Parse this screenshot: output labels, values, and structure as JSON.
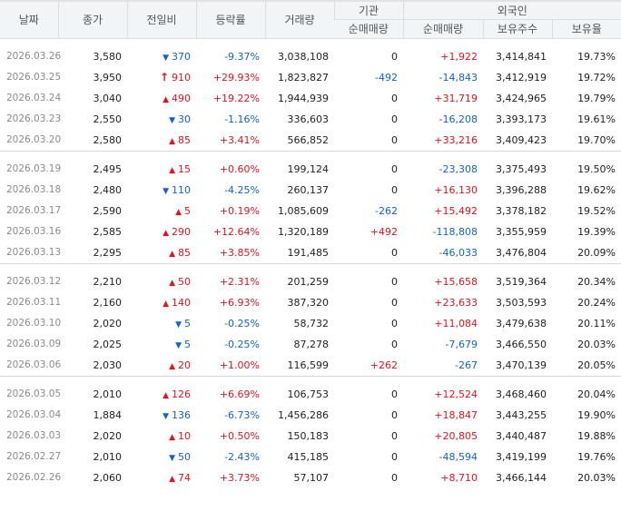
{
  "headers": {
    "date": "날짜",
    "close": "종가",
    "change": "전일비",
    "rate": "등락률",
    "volume": "거래량",
    "institution": "기관",
    "foreign": "외국인",
    "inst_net": "순매매량",
    "foreign_net": "순매매량",
    "foreign_shares": "보유주수",
    "foreign_ratio": "보유율"
  },
  "groups": [
    [
      {
        "date": "2026.03.26",
        "close": "3,580",
        "dir": "down",
        "mark": "▼",
        "change": "370",
        "rate": "-9.37%",
        "volume": "3,038,108",
        "inst": "0",
        "inst_dir": "plain",
        "foreign": "+1,922",
        "foreign_dir": "up",
        "shares": "3,414,841",
        "ratio": "19.73%"
      },
      {
        "date": "2026.03.25",
        "close": "3,950",
        "dir": "up",
        "mark": "↑",
        "change": "910",
        "rate": "+29.93%",
        "volume": "1,823,827",
        "inst": "-492",
        "inst_dir": "down",
        "foreign": "-14,843",
        "foreign_dir": "down",
        "shares": "3,412,919",
        "ratio": "19.72%"
      },
      {
        "date": "2026.03.24",
        "close": "3,040",
        "dir": "up",
        "mark": "▲",
        "change": "490",
        "rate": "+19.22%",
        "volume": "1,944,939",
        "inst": "0",
        "inst_dir": "plain",
        "foreign": "+31,719",
        "foreign_dir": "up",
        "shares": "3,424,965",
        "ratio": "19.79%"
      },
      {
        "date": "2026.03.23",
        "close": "2,550",
        "dir": "down",
        "mark": "▼",
        "change": "30",
        "rate": "-1.16%",
        "volume": "336,603",
        "inst": "0",
        "inst_dir": "plain",
        "foreign": "-16,208",
        "foreign_dir": "down",
        "shares": "3,393,173",
        "ratio": "19.61%"
      },
      {
        "date": "2026.03.20",
        "close": "2,580",
        "dir": "up",
        "mark": "▲",
        "change": "85",
        "rate": "+3.41%",
        "volume": "566,852",
        "inst": "0",
        "inst_dir": "plain",
        "foreign": "+33,216",
        "foreign_dir": "up",
        "shares": "3,409,423",
        "ratio": "19.70%"
      }
    ],
    [
      {
        "date": "2026.03.19",
        "close": "2,495",
        "dir": "up",
        "mark": "▲",
        "change": "15",
        "rate": "+0.60%",
        "volume": "199,124",
        "inst": "0",
        "inst_dir": "plain",
        "foreign": "-23,308",
        "foreign_dir": "down",
        "shares": "3,375,493",
        "ratio": "19.50%"
      },
      {
        "date": "2026.03.18",
        "close": "2,480",
        "dir": "down",
        "mark": "▼",
        "change": "110",
        "rate": "-4.25%",
        "volume": "260,137",
        "inst": "0",
        "inst_dir": "plain",
        "foreign": "+16,130",
        "foreign_dir": "up",
        "shares": "3,396,288",
        "ratio": "19.62%"
      },
      {
        "date": "2026.03.17",
        "close": "2,590",
        "dir": "up",
        "mark": "▲",
        "change": "5",
        "rate": "+0.19%",
        "volume": "1,085,609",
        "inst": "-262",
        "inst_dir": "down",
        "foreign": "+15,492",
        "foreign_dir": "up",
        "shares": "3,378,182",
        "ratio": "19.52%"
      },
      {
        "date": "2026.03.16",
        "close": "2,585",
        "dir": "up",
        "mark": "▲",
        "change": "290",
        "rate": "+12.64%",
        "volume": "1,320,189",
        "inst": "+492",
        "inst_dir": "up",
        "foreign": "-118,808",
        "foreign_dir": "down",
        "shares": "3,355,959",
        "ratio": "19.39%"
      },
      {
        "date": "2026.03.13",
        "close": "2,295",
        "dir": "up",
        "mark": "▲",
        "change": "85",
        "rate": "+3.85%",
        "volume": "191,485",
        "inst": "0",
        "inst_dir": "plain",
        "foreign": "-46,033",
        "foreign_dir": "down",
        "shares": "3,476,804",
        "ratio": "20.09%"
      }
    ],
    [
      {
        "date": "2026.03.12",
        "close": "2,210",
        "dir": "up",
        "mark": "▲",
        "change": "50",
        "rate": "+2.31%",
        "volume": "201,259",
        "inst": "0",
        "inst_dir": "plain",
        "foreign": "+15,658",
        "foreign_dir": "up",
        "shares": "3,519,364",
        "ratio": "20.34%"
      },
      {
        "date": "2026.03.11",
        "close": "2,160",
        "dir": "up",
        "mark": "▲",
        "change": "140",
        "rate": "+6.93%",
        "volume": "387,320",
        "inst": "0",
        "inst_dir": "plain",
        "foreign": "+23,633",
        "foreign_dir": "up",
        "shares": "3,503,593",
        "ratio": "20.24%"
      },
      {
        "date": "2026.03.10",
        "close": "2,020",
        "dir": "down",
        "mark": "▼",
        "change": "5",
        "rate": "-0.25%",
        "volume": "58,732",
        "inst": "0",
        "inst_dir": "plain",
        "foreign": "+11,084",
        "foreign_dir": "up",
        "shares": "3,479,638",
        "ratio": "20.11%"
      },
      {
        "date": "2026.03.09",
        "close": "2,025",
        "dir": "down",
        "mark": "▼",
        "change": "5",
        "rate": "-0.25%",
        "volume": "87,278",
        "inst": "0",
        "inst_dir": "plain",
        "foreign": "-7,679",
        "foreign_dir": "down",
        "shares": "3,466,550",
        "ratio": "20.03%"
      },
      {
        "date": "2026.03.06",
        "close": "2,030",
        "dir": "up",
        "mark": "▲",
        "change": "20",
        "rate": "+1.00%",
        "volume": "116,599",
        "inst": "+262",
        "inst_dir": "up",
        "foreign": "-267",
        "foreign_dir": "down",
        "shares": "3,470,139",
        "ratio": "20.05%"
      }
    ],
    [
      {
        "date": "2026.03.05",
        "close": "2,010",
        "dir": "up",
        "mark": "▲",
        "change": "126",
        "rate": "+6.69%",
        "volume": "106,753",
        "inst": "0",
        "inst_dir": "plain",
        "foreign": "+12,524",
        "foreign_dir": "up",
        "shares": "3,468,460",
        "ratio": "20.04%"
      },
      {
        "date": "2026.03.04",
        "close": "1,884",
        "dir": "down",
        "mark": "▼",
        "change": "136",
        "rate": "-6.73%",
        "volume": "1,456,286",
        "inst": "0",
        "inst_dir": "plain",
        "foreign": "+18,847",
        "foreign_dir": "up",
        "shares": "3,443,255",
        "ratio": "19.90%"
      },
      {
        "date": "2026.03.03",
        "close": "2,020",
        "dir": "up",
        "mark": "▲",
        "change": "10",
        "rate": "+0.50%",
        "volume": "150,183",
        "inst": "0",
        "inst_dir": "plain",
        "foreign": "+20,805",
        "foreign_dir": "up",
        "shares": "3,440,487",
        "ratio": "19.88%"
      },
      {
        "date": "2026.02.27",
        "close": "2,010",
        "dir": "down",
        "mark": "▼",
        "change": "50",
        "rate": "-2.43%",
        "volume": "415,185",
        "inst": "0",
        "inst_dir": "plain",
        "foreign": "-48,594",
        "foreign_dir": "down",
        "shares": "3,419,199",
        "ratio": "19.76%"
      },
      {
        "date": "2026.02.26",
        "close": "2,060",
        "dir": "up",
        "mark": "▲",
        "change": "74",
        "rate": "+3.73%",
        "volume": "57,107",
        "inst": "0",
        "inst_dir": "plain",
        "foreign": "+8,710",
        "foreign_dir": "up",
        "shares": "3,466,144",
        "ratio": "20.03%"
      }
    ]
  ],
  "colors": {
    "up": "#e0141e",
    "down": "#1262cc"
  }
}
